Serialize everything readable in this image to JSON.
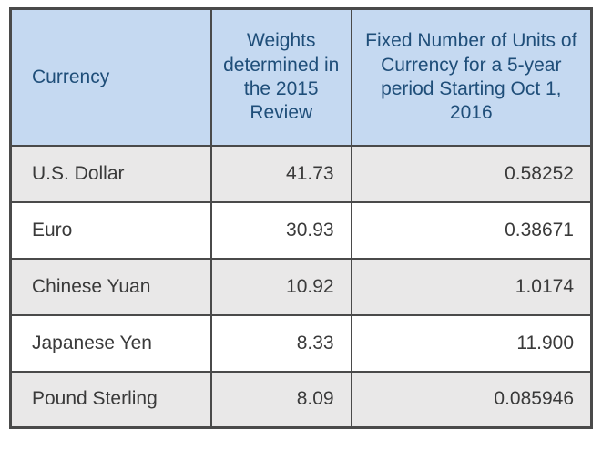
{
  "table": {
    "headers": [
      "Currency",
      "Weights determined in the 2015 Review",
      "Fixed Number of Units of Currency for a 5-year period Starting Oct 1, 2016"
    ],
    "rows": [
      {
        "currency": "U.S. Dollar",
        "weight": "41.73",
        "units": "0.58252"
      },
      {
        "currency": "Euro",
        "weight": "30.93",
        "units": "0.38671"
      },
      {
        "currency": "Chinese Yuan",
        "weight": "10.92",
        "units": "1.0174"
      },
      {
        "currency": "Japanese Yen",
        "weight": "8.33",
        "units": "11.900"
      },
      {
        "currency": "Pound Sterling",
        "weight": "8.09",
        "units": "0.085946"
      }
    ]
  },
  "colors": {
    "header_bg": "#c5d9f1",
    "header_text": "#1f4e79",
    "row_alt_bg": "#e9e8e8",
    "body_text": "#3a3a3a",
    "border": "#4a4a4a"
  },
  "chart_data": {
    "type": "table",
    "title": "",
    "columns": [
      "Currency",
      "Weights determined in the 2015 Review",
      "Fixed Number of Units of Currency for a 5-year period Starting Oct 1, 2016"
    ],
    "rows": [
      [
        "U.S. Dollar",
        41.73,
        0.58252
      ],
      [
        "Euro",
        30.93,
        0.38671
      ],
      [
        "Chinese Yuan",
        10.92,
        1.0174
      ],
      [
        "Japanese Yen",
        8.33,
        11.9
      ],
      [
        "Pound Sterling",
        8.09,
        0.085946
      ]
    ]
  }
}
